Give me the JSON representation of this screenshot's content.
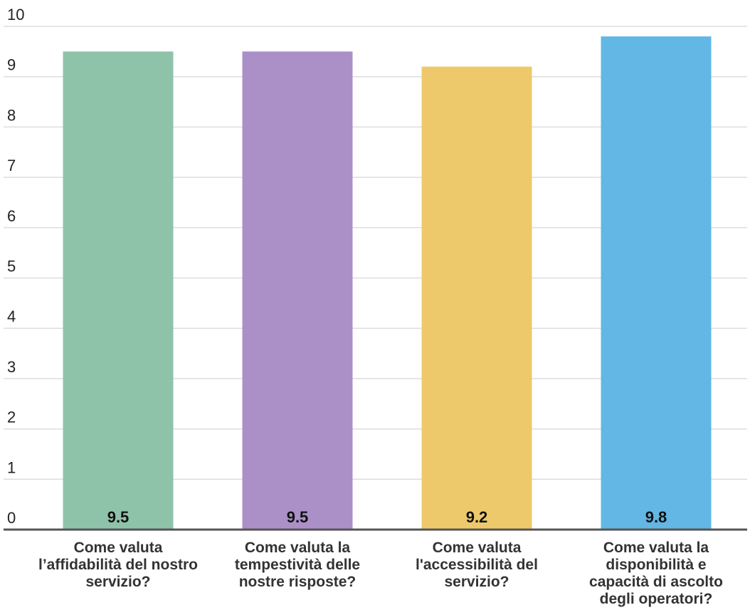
{
  "chart_data": {
    "type": "bar",
    "categories": [
      "Come valuta l’affidabilità del nostro servizio?",
      "Come valuta la tempestività delle nostre risposte?",
      "Come valuta l'accessibilità del servizio?",
      "Come valuta la disponibilità e capacità di ascolto degli operatori?"
    ],
    "category_lines": [
      [
        "Come valuta",
        "l’affidabilità del nostro",
        "servizio?"
      ],
      [
        "Come valuta la",
        "tempestività delle",
        "nostre risposte?"
      ],
      [
        "Come valuta",
        "l'accessibilità del",
        "servizio?"
      ],
      [
        "Come valuta la",
        "disponibilità e",
        "capacità di ascolto",
        "degli operatori?"
      ]
    ],
    "values": [
      9.5,
      9.5,
      9.2,
      9.8
    ],
    "value_labels": [
      "9.5",
      "9.5",
      "9.2",
      "9.8"
    ],
    "colors": [
      "#8fc3a9",
      "#ab90c8",
      "#edc96c",
      "#62b7e5"
    ],
    "yticks": [
      "0",
      "1",
      "2",
      "3",
      "4",
      "5",
      "6",
      "7",
      "8",
      "9",
      "10"
    ],
    "ylim": [
      0,
      10
    ],
    "title": "",
    "xlabel": "",
    "ylabel": "",
    "grid": true,
    "legend": "none"
  }
}
